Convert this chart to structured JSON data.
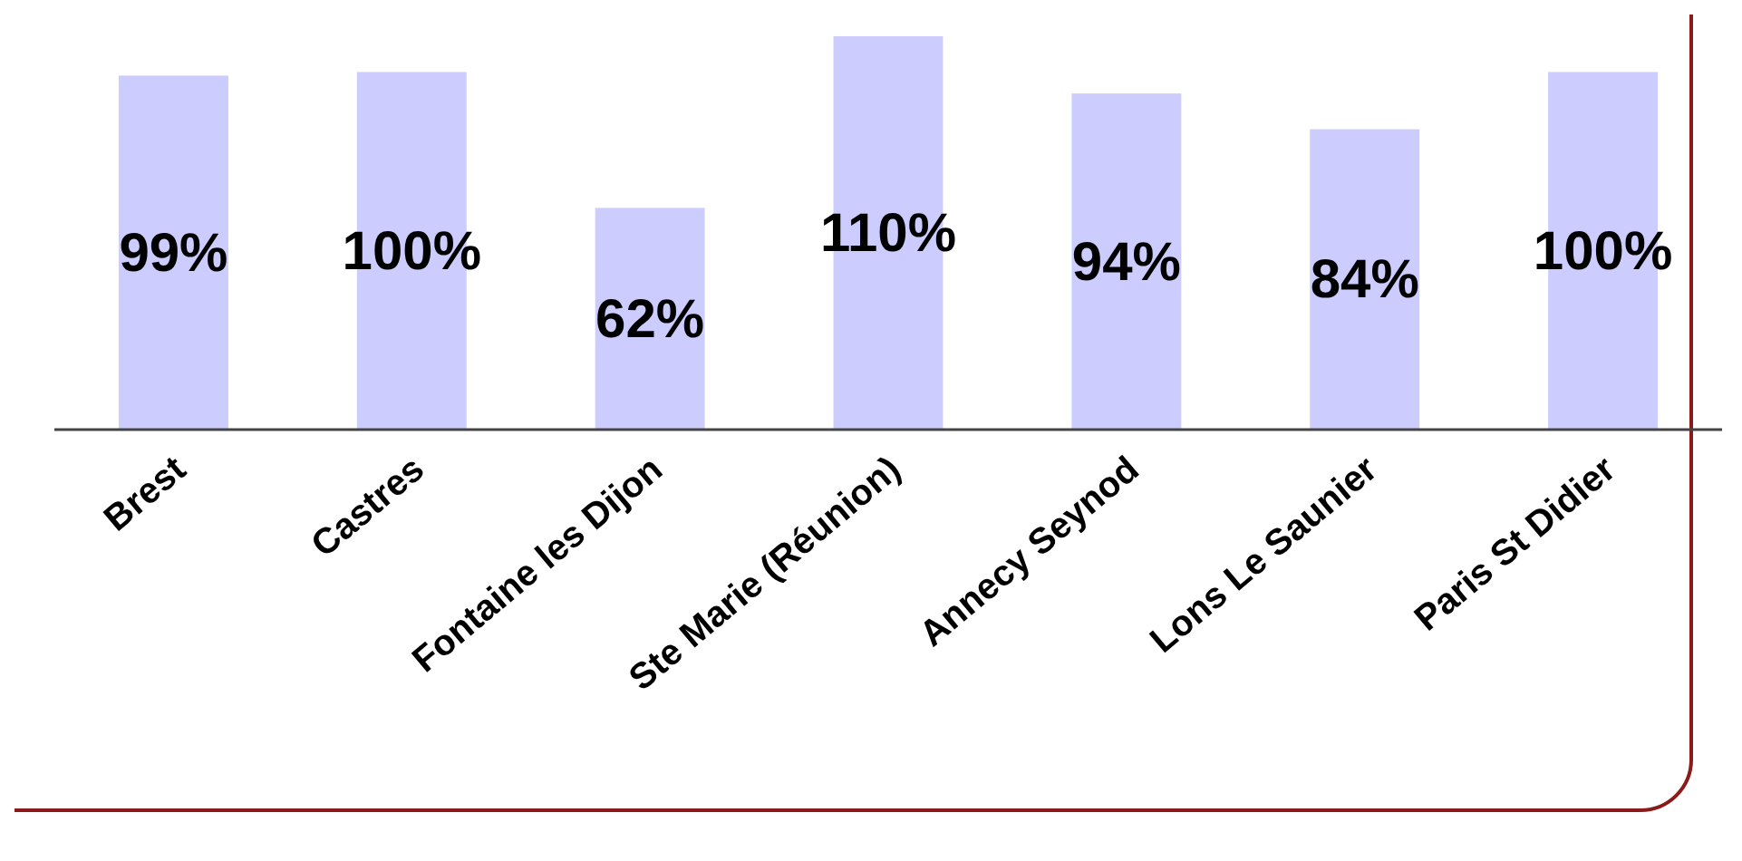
{
  "chart_data": {
    "type": "bar",
    "categories": [
      "Brest",
      "Castres",
      "Fontaine les Dijon",
      "Ste Marie (Réunion)",
      "Annecy Seynod",
      "Lons Le Saunier",
      "Paris St Didier"
    ],
    "values": [
      99,
      100,
      62,
      110,
      94,
      84,
      100
    ],
    "value_labels": [
      "99%",
      "100%",
      "62%",
      "110%",
      "94%",
      "84%",
      "100%"
    ],
    "color": "#ccccff",
    "ylim": [
      0,
      110
    ],
    "tick_labels": "x"
  }
}
